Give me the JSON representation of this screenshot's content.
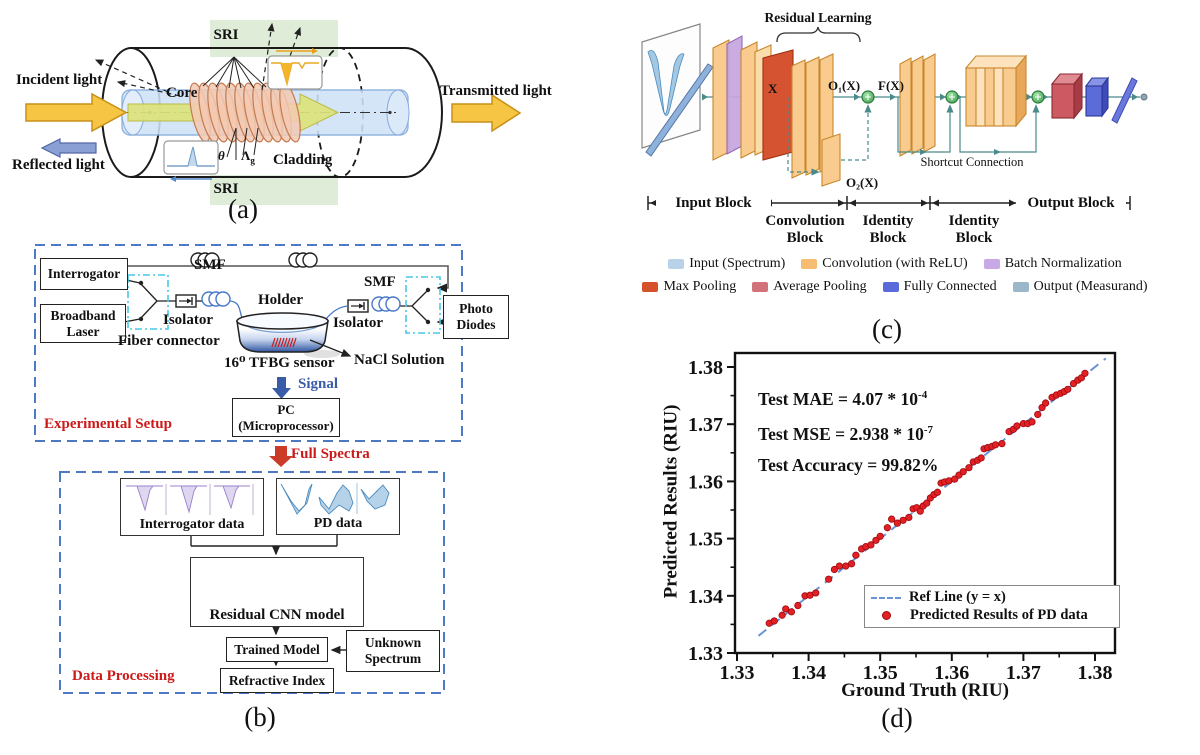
{
  "figure": {
    "captions": {
      "a": "(a)",
      "b": "(b)",
      "c": "(c)",
      "d": "(d)"
    }
  },
  "panel_a": {
    "labels": {
      "incident_light": "Incident light",
      "reflected_light": "Reflected light",
      "transmitted_light": "Transmitted light",
      "core": "Core",
      "cladding": "Cladding",
      "sri_top": "SRI",
      "sri_bottom": "SRI",
      "theta": "θ",
      "grating_period_symbol": "Λ",
      "grating_period_sub": "g"
    },
    "colors": {
      "light_arrow": "#f6c544",
      "reflected_arrow": "#8aa0d4",
      "core_fill": "#cfe2f6",
      "sri_band": "#deecd8",
      "grating": "#f3c9b1",
      "core_mode_arrow": "#dde37c"
    }
  },
  "panel_b": {
    "sections": {
      "experimental_setup": "Experimental Setup",
      "data_processing": "Data Processing"
    },
    "boxes": {
      "interrogator": "Interrogator",
      "broadband_laser_line1": "Broadband",
      "broadband_laser_line2": "Laser",
      "photo_diodes_line1": "Photo",
      "photo_diodes_line2": "Diodes",
      "pc_line1": "PC",
      "pc_line2": "(Microprocessor)",
      "interrogator_data": "Interrogator data",
      "pd_data": "PD data",
      "residual_cnn": "Residual CNN model",
      "trained_model": "Trained Model",
      "unknown_spectrum_line1": "Unknown",
      "unknown_spectrum_line2": "Spectrum",
      "refractive_index": "Refractive Index"
    },
    "labels": {
      "smf_left": "SMF",
      "smf_right": "SMF",
      "isolator_left": "Isolator",
      "isolator_right": "Isolator",
      "fiber_connector": "Fiber connector",
      "holder": "Holder",
      "tfbg_sensor": "16⁰ TFBG sensor",
      "nacl": "NaCl Solution",
      "signal": "Signal",
      "full_spectra": "Full Spectra"
    },
    "colors": {
      "dashed_box": "#4d79c7",
      "section_title": "#cc1a1a",
      "signal_text": "#3a5ba8",
      "fiber": "#4878c8",
      "full_spectra_arrow": "#cc3a28"
    }
  },
  "panel_c": {
    "annotations": {
      "residual_learning": "Residual Learning",
      "shortcut_connection": "Shortcut Connection",
      "x": "X",
      "o1": "O₁(X)",
      "f": "F(X)",
      "o2": "O₂(X)"
    },
    "block_labels": {
      "input": "Input Block",
      "conv_line1": "Convolution",
      "conv_line2": "Block",
      "identity1_line1": "Identity",
      "identity1_line2": "Block",
      "identity2_line1": "Identity",
      "identity2_line2": "Block",
      "output": "Output Block"
    },
    "legend": [
      {
        "label": "Input (Spectrum)",
        "color": "#b9d2ea"
      },
      {
        "label": "Convolution (with ReLU)",
        "color": "#f5bc72"
      },
      {
        "label": "Batch Normalization",
        "color": "#c9a8e6"
      },
      {
        "label": "Max Pooling",
        "color": "#d5512c"
      },
      {
        "label": "Average Pooling",
        "color": "#d2737b"
      },
      {
        "label": "Fully Connected",
        "color": "#5a6ad8"
      },
      {
        "label": "Output (Measurand)",
        "color": "#9cb6ca"
      }
    ]
  },
  "chart_data": {
    "type": "scatter",
    "title": "",
    "xlabel": "Ground Truth (RIU)",
    "ylabel": "Predicted Results (RIU)",
    "xlim": [
      1.33,
      1.383
    ],
    "ylim": [
      1.33,
      1.383
    ],
    "xticks": [
      1.33,
      1.34,
      1.35,
      1.36,
      1.37,
      1.38
    ],
    "yticks": [
      1.33,
      1.34,
      1.35,
      1.36,
      1.37,
      1.38
    ],
    "grid": false,
    "annotations": [
      {
        "base": "Test MAE = 4.07 * 10",
        "sup": "-4"
      },
      {
        "base": "Test MSE = 2.938 * 10",
        "sup": "-7"
      },
      {
        "base": "Test Accuracy = 99.82%",
        "sup": ""
      }
    ],
    "legend": [
      {
        "label": "Ref Line (y = x)",
        "marker": "dashed-line",
        "color": "#6a94d8"
      },
      {
        "label": "Predicted Results of PD data",
        "marker": "dot",
        "color": "#e32024"
      }
    ],
    "ref_line": {
      "x1": 1.333,
      "y1": 1.333,
      "x2": 1.3815,
      "y2": 1.3815
    },
    "point_color": "#e32024",
    "point_edge": "#9c0a10",
    "points": [
      [
        1.3345,
        1.3352
      ],
      [
        1.3352,
        1.3356
      ],
      [
        1.3363,
        1.3366
      ],
      [
        1.3368,
        1.3377
      ],
      [
        1.3376,
        1.3372
      ],
      [
        1.3385,
        1.3383
      ],
      [
        1.3395,
        1.34
      ],
      [
        1.3402,
        1.3401
      ],
      [
        1.341,
        1.3405
      ],
      [
        1.3428,
        1.3429
      ],
      [
        1.3436,
        1.3446
      ],
      [
        1.3443,
        1.3452
      ],
      [
        1.3452,
        1.3452
      ],
      [
        1.346,
        1.3456
      ],
      [
        1.3466,
        1.3471
      ],
      [
        1.3474,
        1.3482
      ],
      [
        1.348,
        1.3486
      ],
      [
        1.3487,
        1.3489
      ],
      [
        1.3494,
        1.3497
      ],
      [
        1.35,
        1.3504
      ],
      [
        1.351,
        1.3519
      ],
      [
        1.3516,
        1.3534
      ],
      [
        1.3524,
        1.3527
      ],
      [
        1.3532,
        1.3532
      ],
      [
        1.354,
        1.3537
      ],
      [
        1.3546,
        1.3552
      ],
      [
        1.3551,
        1.3554
      ],
      [
        1.3556,
        1.3548
      ],
      [
        1.356,
        1.3557
      ],
      [
        1.3565,
        1.3562
      ],
      [
        1.357,
        1.3571
      ],
      [
        1.3575,
        1.3577
      ],
      [
        1.358,
        1.3581
      ],
      [
        1.3585,
        1.3597
      ],
      [
        1.359,
        1.3599
      ],
      [
        1.3596,
        1.3601
      ],
      [
        1.3604,
        1.3604
      ],
      [
        1.361,
        1.3611
      ],
      [
        1.3616,
        1.3617
      ],
      [
        1.3624,
        1.3624
      ],
      [
        1.363,
        1.3634
      ],
      [
        1.3636,
        1.3637
      ],
      [
        1.3641,
        1.3641
      ],
      [
        1.3645,
        1.3657
      ],
      [
        1.365,
        1.3659
      ],
      [
        1.3656,
        1.3661
      ],
      [
        1.3661,
        1.3664
      ],
      [
        1.367,
        1.3666
      ],
      [
        1.368,
        1.3687
      ],
      [
        1.3686,
        1.3691
      ],
      [
        1.3691,
        1.3697
      ],
      [
        1.37,
        1.3701
      ],
      [
        1.3706,
        1.3701
      ],
      [
        1.3712,
        1.3704
      ],
      [
        1.372,
        1.3717
      ],
      [
        1.3726,
        1.3729
      ],
      [
        1.3731,
        1.3737
      ],
      [
        1.374,
        1.3747
      ],
      [
        1.3746,
        1.3751
      ],
      [
        1.3752,
        1.3754
      ],
      [
        1.3757,
        1.3757
      ],
      [
        1.3762,
        1.3761
      ],
      [
        1.377,
        1.3771
      ],
      [
        1.3776,
        1.3777
      ],
      [
        1.3781,
        1.3781
      ],
      [
        1.3786,
        1.3789
      ]
    ]
  }
}
